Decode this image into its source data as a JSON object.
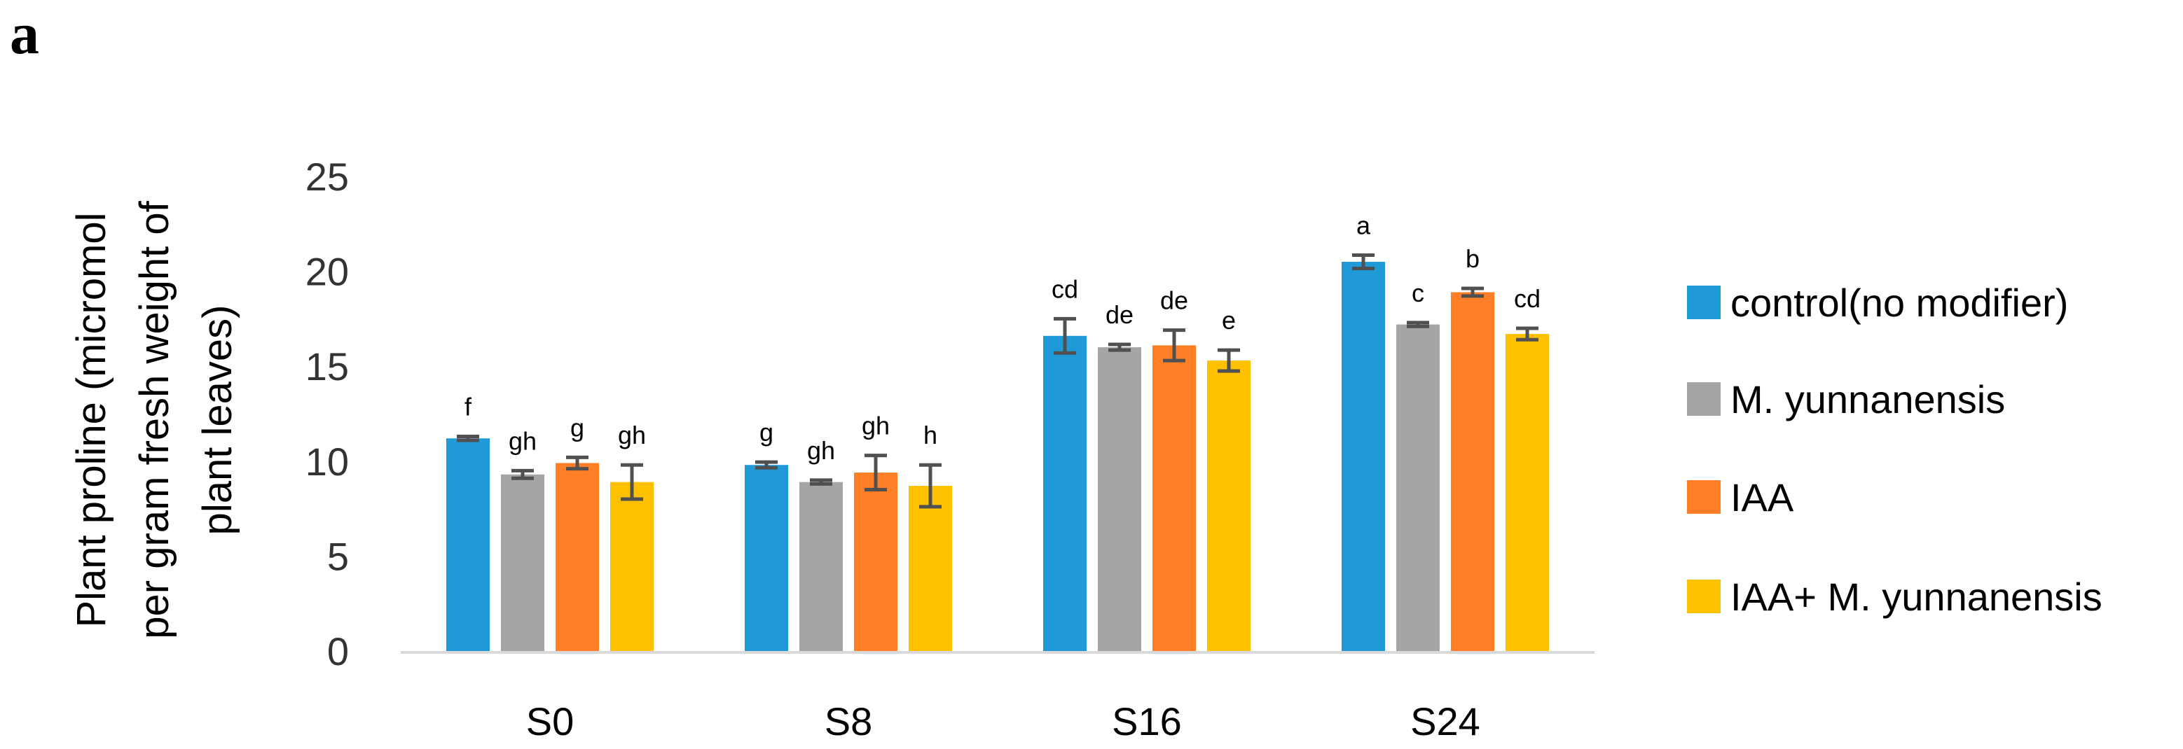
{
  "figure": {
    "panel_letter": "a"
  },
  "chart_data": {
    "type": "bar",
    "title": "",
    "xlabel": "",
    "ylabel_lines": [
      "Plant proline (micromol",
      "per gram fresh weight of",
      "plant leaves)"
    ],
    "ylim": [
      0,
      25
    ],
    "yticks": [
      0,
      5,
      10,
      15,
      20,
      25
    ],
    "grid": false,
    "legend_position": "right",
    "categories": [
      "S0",
      "S8",
      "S16",
      "S24"
    ],
    "series": [
      {
        "name": "control(no modifier)",
        "color": "#1F9AD6",
        "values": [
          11.2,
          9.8,
          16.6,
          20.5
        ],
        "errors": [
          0.1,
          0.15,
          0.9,
          0.35
        ],
        "labels": [
          "f",
          "g",
          "cd",
          "a"
        ]
      },
      {
        "name": "M. yunnanensis",
        "color": "#A5A5A5",
        "values": [
          9.3,
          8.9,
          16.0,
          17.2
        ],
        "errors": [
          0.2,
          0.1,
          0.15,
          0.1
        ],
        "labels": [
          "gh",
          "gh",
          "de",
          "c"
        ]
      },
      {
        "name": "IAA",
        "color": "#FF7F27",
        "values": [
          9.9,
          9.4,
          16.1,
          18.9
        ],
        "errors": [
          0.3,
          0.9,
          0.8,
          0.2
        ],
        "labels": [
          "g",
          "gh",
          "de",
          "b"
        ]
      },
      {
        "name": "IAA+ M. yunnanensis",
        "color": "#FFC000",
        "values": [
          8.9,
          8.7,
          15.3,
          16.7
        ],
        "errors": [
          0.9,
          1.1,
          0.55,
          0.3
        ],
        "labels": [
          "gh",
          "h",
          "e",
          "cd"
        ]
      }
    ],
    "error_bar_color": "#505050",
    "axis_color": "#D9D9D9"
  }
}
